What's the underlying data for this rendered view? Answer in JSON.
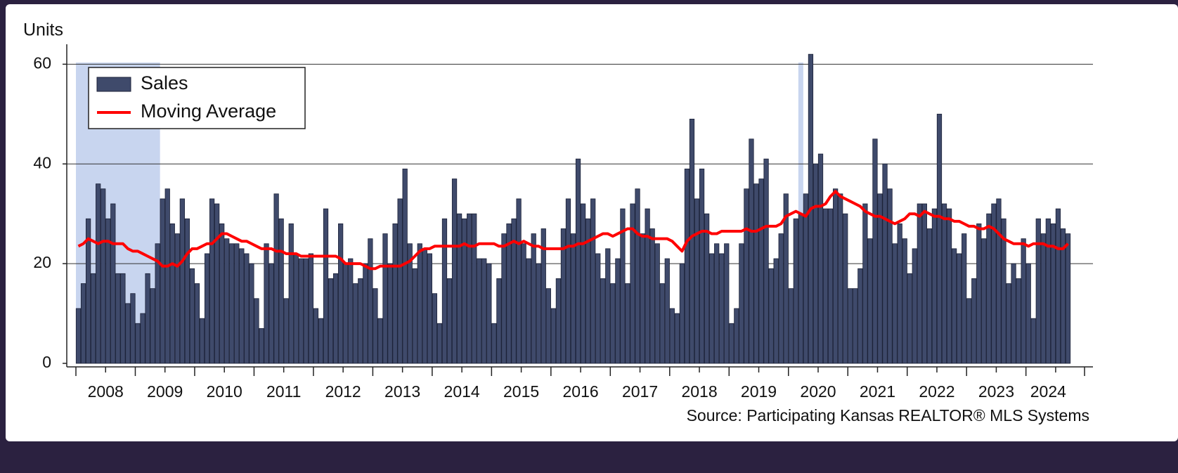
{
  "chart_data": {
    "type": "bar",
    "y_label": "Units",
    "source": "Source: Participating Kansas REALTOR® MLS Systems",
    "categories": [
      "2008",
      null,
      null,
      null,
      null,
      null,
      null,
      null,
      null,
      null,
      null,
      null,
      "2009",
      null,
      null,
      null,
      null,
      null,
      null,
      null,
      null,
      null,
      null,
      null,
      "2010",
      null,
      null,
      null,
      null,
      null,
      null,
      null,
      null,
      null,
      null,
      null,
      "2011",
      null,
      null,
      null,
      null,
      null,
      null,
      null,
      null,
      null,
      null,
      null,
      "2012",
      null,
      null,
      null,
      null,
      null,
      null,
      null,
      null,
      null,
      null,
      null,
      "2013",
      null,
      null,
      null,
      null,
      null,
      null,
      null,
      null,
      null,
      null,
      null,
      "2014",
      null,
      null,
      null,
      null,
      null,
      null,
      null,
      null,
      null,
      null,
      null,
      "2015",
      null,
      null,
      null,
      null,
      null,
      null,
      null,
      null,
      null,
      null,
      null,
      "2016",
      null,
      null,
      null,
      null,
      null,
      null,
      null,
      null,
      null,
      null,
      null,
      "2017",
      null,
      null,
      null,
      null,
      null,
      null,
      null,
      null,
      null,
      null,
      null,
      "2018",
      null,
      null,
      null,
      null,
      null,
      null,
      null,
      null,
      null,
      null,
      null,
      "2019",
      null,
      null,
      null,
      null,
      null,
      null,
      null,
      null,
      null,
      null,
      null,
      "2020",
      null,
      null,
      null,
      null,
      null,
      null,
      null,
      null,
      null,
      null,
      null,
      "2021",
      null,
      null,
      null,
      null,
      null,
      null,
      null,
      null,
      null,
      null,
      null,
      "2022",
      null,
      null,
      null,
      null,
      null,
      null,
      null,
      null,
      null,
      null,
      null,
      "2023",
      null,
      null,
      null,
      null,
      null,
      null,
      null,
      null,
      null,
      null,
      null,
      "2024",
      null,
      null,
      null,
      null,
      null,
      null,
      null,
      null
    ],
    "series": [
      {
        "name": "Sales",
        "color": "#3f4a6b",
        "type": "bar",
        "values": [
          11,
          16,
          29,
          18,
          36,
          35,
          29,
          32,
          18,
          18,
          12,
          14,
          8,
          10,
          18,
          15,
          24,
          33,
          35,
          28,
          26,
          33,
          29,
          19,
          16,
          9,
          22,
          33,
          32,
          28,
          25,
          24,
          24,
          23,
          22,
          20,
          13,
          7,
          24,
          20,
          34,
          29,
          13,
          28,
          22,
          21,
          21,
          22,
          11,
          9,
          31,
          17,
          18,
          28,
          20,
          21,
          16,
          17,
          20,
          25,
          15,
          9,
          26,
          20,
          28,
          33,
          39,
          24,
          19,
          24,
          23,
          22,
          14,
          8,
          29,
          17,
          37,
          30,
          29,
          30,
          30,
          21,
          21,
          20,
          8,
          17,
          26,
          28,
          29,
          33,
          24,
          21,
          26,
          20,
          27,
          15,
          11,
          17,
          27,
          33,
          26,
          41,
          32,
          29,
          33,
          22,
          17,
          23,
          16,
          21,
          31,
          16,
          32,
          35,
          26,
          31,
          27,
          24,
          16,
          21,
          11,
          10,
          20,
          39,
          49,
          33,
          39,
          30,
          22,
          24,
          22,
          24,
          8,
          11,
          24,
          35,
          45,
          36,
          37,
          41,
          19,
          21,
          26,
          34,
          15,
          29,
          30,
          34,
          62,
          40,
          42,
          31,
          31,
          35,
          34,
          30,
          15,
          15,
          19,
          32,
          25,
          45,
          34,
          40,
          35,
          24,
          28,
          25,
          18,
          23,
          32,
          32,
          27,
          31,
          50,
          32,
          31,
          23,
          22,
          26,
          13,
          17,
          28,
          25,
          30,
          32,
          33,
          29,
          16,
          20,
          17,
          25,
          20,
          9,
          29,
          26,
          29,
          28,
          31,
          27,
          26
        ]
      },
      {
        "name": "Moving Average",
        "color": "#ff0000",
        "type": "line",
        "values": [
          23.5,
          24,
          25,
          24.5,
          24,
          24.5,
          24.5,
          24,
          24,
          24,
          23,
          22.5,
          22.5,
          22,
          21.5,
          21,
          20.5,
          19.5,
          19.5,
          20,
          19.5,
          20.5,
          22,
          23,
          23,
          23.5,
          24,
          24,
          25,
          26,
          26,
          25.5,
          25,
          24.5,
          24.5,
          24,
          23.5,
          23,
          23,
          23,
          22.5,
          22.5,
          22,
          22,
          22,
          21.5,
          21.5,
          21.5,
          21.5,
          21.5,
          21.5,
          21.5,
          21.5,
          21,
          20,
          20,
          20,
          20,
          19.5,
          19,
          19,
          19.5,
          19.5,
          19.5,
          19.5,
          19.5,
          20,
          20.5,
          21.5,
          22.5,
          23,
          23,
          23.5,
          23.5,
          23.5,
          23.5,
          23.5,
          23.5,
          24,
          23.5,
          23.5,
          24,
          24,
          24,
          24,
          23.5,
          23.5,
          24,
          24.5,
          24,
          24.5,
          24,
          23.5,
          23.5,
          23,
          23,
          23,
          23,
          23,
          23.5,
          23.5,
          24,
          24,
          24.5,
          25,
          25.5,
          26,
          26,
          25.5,
          26,
          26.5,
          27,
          27,
          26,
          25.5,
          25.5,
          25,
          25,
          25,
          25,
          24.5,
          23.5,
          22.5,
          24.5,
          25.5,
          26,
          26.5,
          26.5,
          26,
          26,
          26.5,
          26.5,
          26.5,
          26.5,
          26.5,
          27,
          26.5,
          26.5,
          27,
          27.5,
          27.5,
          27.5,
          28,
          29.5,
          30,
          30.5,
          30,
          29.5,
          31,
          31.5,
          31.5,
          32,
          33.5,
          34.5,
          33.5,
          33,
          32.5,
          32,
          31.5,
          30.5,
          30,
          29.5,
          29.5,
          29,
          28.5,
          28,
          28.5,
          29,
          30,
          30,
          29.5,
          30.5,
          30,
          29.5,
          29.5,
          29,
          29,
          28.5,
          28.5,
          28,
          27.5,
          27.5,
          27,
          27,
          27.5,
          27,
          26,
          25,
          24.5,
          24,
          24,
          24,
          23.5,
          24,
          24,
          24,
          23.5,
          23.5,
          23,
          23,
          24
        ]
      }
    ],
    "shaded_ranges": [
      [
        0,
        16
      ],
      [
        146,
        146
      ]
    ],
    "shade_color": "#c8d5ef",
    "ylim": [
      0,
      64
    ],
    "yticks": [
      0,
      20,
      40,
      60
    ],
    "grid": true,
    "legend": "upper left"
  }
}
